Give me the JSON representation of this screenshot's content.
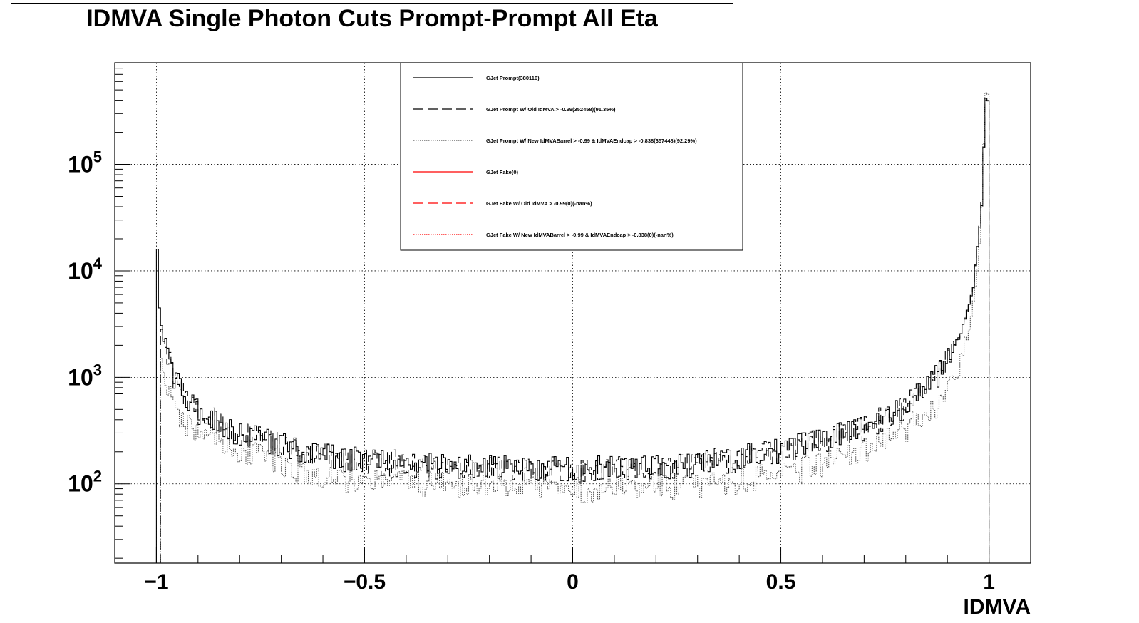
{
  "title": "IDMVA Single Photon Cuts Prompt-Prompt All Eta",
  "chart_data": {
    "type": "histogram",
    "xlabel": "IDMVA",
    "ylabel": "",
    "xlim": [
      -1.1,
      1.1
    ],
    "ylim": [
      18,
      900000
    ],
    "y_scale": "log",
    "grid": true,
    "legend_placement": "top-center",
    "x_ticks": [
      {
        "value": -1,
        "label": "−1"
      },
      {
        "value": -0.5,
        "label": "−0.5"
      },
      {
        "value": 0,
        "label": "0"
      },
      {
        "value": 0.5,
        "label": "0.5"
      },
      {
        "value": 1,
        "label": "1"
      }
    ],
    "y_ticks": [
      {
        "value": 100,
        "base": "10",
        "exp": "2"
      },
      {
        "value": 1000,
        "base": "10",
        "exp": "3"
      },
      {
        "value": 10000,
        "base": "10",
        "exp": "4"
      },
      {
        "value": 100000,
        "base": "10",
        "exp": "5"
      }
    ],
    "series": [
      {
        "name": "GJet Prompt(380110)",
        "color": "#000000",
        "style": "solid",
        "anchors": [
          [
            -1.0,
            50000
          ],
          [
            -0.995,
            5500
          ],
          [
            -0.99,
            3300
          ],
          [
            -0.98,
            2000
          ],
          [
            -0.96,
            1100
          ],
          [
            -0.93,
            700
          ],
          [
            -0.9,
            480
          ],
          [
            -0.85,
            380
          ],
          [
            -0.8,
            300
          ],
          [
            -0.7,
            240
          ],
          [
            -0.6,
            190
          ],
          [
            -0.5,
            170
          ],
          [
            -0.3,
            150
          ],
          [
            -0.2,
            145
          ],
          [
            0.0,
            140
          ],
          [
            0.2,
            150
          ],
          [
            0.3,
            160
          ],
          [
            0.4,
            180
          ],
          [
            0.5,
            210
          ],
          [
            0.6,
            270
          ],
          [
            0.7,
            340
          ],
          [
            0.75,
            430
          ],
          [
            0.8,
            550
          ],
          [
            0.85,
            800
          ],
          [
            0.88,
            1150
          ],
          [
            0.9,
            1500
          ],
          [
            0.93,
            2500
          ],
          [
            0.96,
            6000
          ],
          [
            0.975,
            20000
          ],
          [
            0.985,
            55000
          ],
          [
            0.99,
            400000
          ],
          [
            0.995,
            400000
          ]
        ]
      },
      {
        "name": "GJet Prompt W/ Old IdMVA > -0.99(352458)(91.35%)",
        "color": "#000000",
        "style": "dashed",
        "anchors": [
          [
            -0.99,
            3300
          ],
          [
            -0.98,
            2000
          ],
          [
            -0.96,
            1100
          ],
          [
            -0.93,
            700
          ],
          [
            -0.9,
            480
          ],
          [
            -0.85,
            380
          ],
          [
            -0.8,
            300
          ],
          [
            -0.7,
            240
          ],
          [
            -0.6,
            190
          ],
          [
            -0.5,
            170
          ],
          [
            -0.3,
            150
          ],
          [
            -0.2,
            145
          ],
          [
            0.0,
            140
          ],
          [
            0.2,
            150
          ],
          [
            0.3,
            160
          ],
          [
            0.4,
            180
          ],
          [
            0.5,
            210
          ],
          [
            0.6,
            270
          ],
          [
            0.7,
            340
          ],
          [
            0.75,
            430
          ],
          [
            0.8,
            550
          ],
          [
            0.85,
            800
          ],
          [
            0.88,
            1150
          ],
          [
            0.9,
            1500
          ],
          [
            0.93,
            2500
          ],
          [
            0.96,
            6000
          ],
          [
            0.975,
            20000
          ],
          [
            0.985,
            55000
          ],
          [
            0.99,
            400000
          ],
          [
            0.995,
            400000
          ]
        ]
      },
      {
        "name": "GJet Prompt W/ New IdMVABarrel > -0.99 & IdMVAEndcap > -0.838(357448)(92.29%)",
        "color": "#555555",
        "style": "dotted",
        "anchors": [
          [
            -0.99,
            1900
          ],
          [
            -0.97,
            700
          ],
          [
            -0.95,
            450
          ],
          [
            -0.9,
            300
          ],
          [
            -0.8,
            210
          ],
          [
            -0.7,
            160
          ],
          [
            -0.6,
            120
          ],
          [
            -0.5,
            110
          ],
          [
            -0.3,
            100
          ],
          [
            0.0,
            90
          ],
          [
            0.2,
            95
          ],
          [
            0.3,
            100
          ],
          [
            0.4,
            110
          ],
          [
            0.5,
            125
          ],
          [
            0.6,
            160
          ],
          [
            0.7,
            210
          ],
          [
            0.75,
            260
          ],
          [
            0.8,
            340
          ],
          [
            0.85,
            450
          ],
          [
            0.88,
            550
          ],
          [
            0.9,
            700
          ],
          [
            0.93,
            1300
          ],
          [
            0.95,
            2500
          ],
          [
            0.97,
            8000
          ],
          [
            0.98,
            25000
          ],
          [
            0.985,
            60000
          ],
          [
            0.99,
            450000
          ],
          [
            0.995,
            450000
          ]
        ]
      },
      {
        "name": "GJet Fake(0)",
        "color": "#ff0000",
        "style": "solid",
        "anchors": []
      },
      {
        "name": "GJet Fake W/ Old IdMVA > -0.99(0)(-nan%)",
        "color": "#ff0000",
        "style": "dashed",
        "anchors": []
      },
      {
        "name": "GJet Fake W/ New IdMVABarrel > -0.99 & IdMVAEndcap > -0.838(0)(-nan%)",
        "color": "#ff0000",
        "style": "dotted",
        "anchors": []
      }
    ]
  }
}
